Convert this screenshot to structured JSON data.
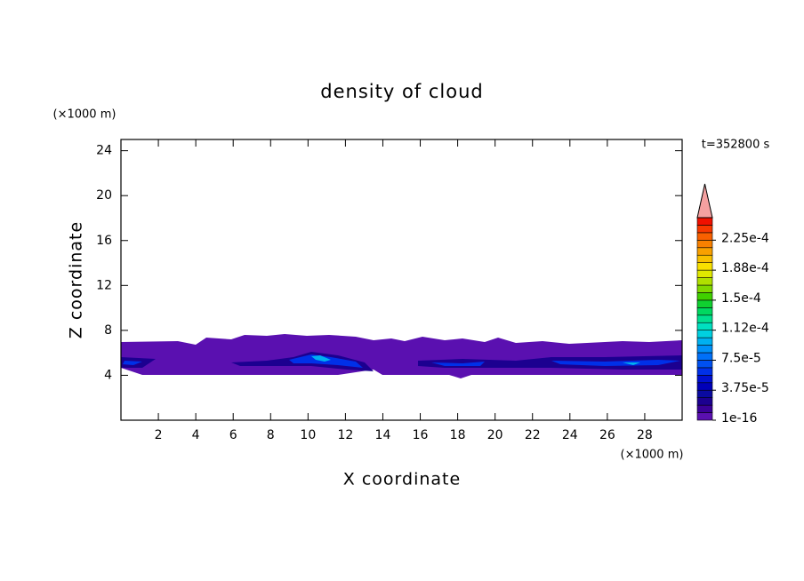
{
  "chart_data": {
    "type": "contour",
    "title": "density of cloud",
    "x_label": "X coordinate",
    "y_label": "Z coordinate",
    "x_unit": "(×1000 m)",
    "y_unit": "(×1000 m)",
    "time_label": "t=352800 s",
    "xlim": [
      0,
      30
    ],
    "ylim": [
      0,
      25
    ],
    "xticks": [
      2,
      4,
      6,
      8,
      10,
      12,
      14,
      16,
      18,
      20,
      22,
      24,
      26,
      28
    ],
    "yticks": [
      4,
      8,
      12,
      16,
      20,
      24
    ],
    "colorbar": {
      "clim": [
        0,
        0.000253125
      ],
      "ticks": [
        {
          "value": 1e-16,
          "label": "1e-16"
        },
        {
          "value": 3.75e-05,
          "label": "3.75e-5"
        },
        {
          "value": 7.5e-05,
          "label": "7.5e-5"
        },
        {
          "value": 0.0001125,
          "label": "1.12e-4"
        },
        {
          "value": 0.00015,
          "label": "1.5e-4"
        },
        {
          "value": 0.0001875,
          "label": "1.88e-4"
        },
        {
          "value": 0.000225,
          "label": "2.25e-4"
        }
      ],
      "colors": [
        "#5a10b0",
        "#3a0098",
        "#1c0090",
        "#0a0aa0",
        "#0000b8",
        "#0010d0",
        "#0030e8",
        "#0050f0",
        "#0070f8",
        "#0090f8",
        "#00b0f0",
        "#00d0e0",
        "#00e0c0",
        "#00e090",
        "#00d860",
        "#10d030",
        "#40d000",
        "#80d800",
        "#b0e000",
        "#e0e800",
        "#f8e000",
        "#f8c000",
        "#f8a000",
        "#f88000",
        "#f86000",
        "#f83800",
        "#f01000"
      ],
      "over_color": "#f4a0a0"
    }
  }
}
